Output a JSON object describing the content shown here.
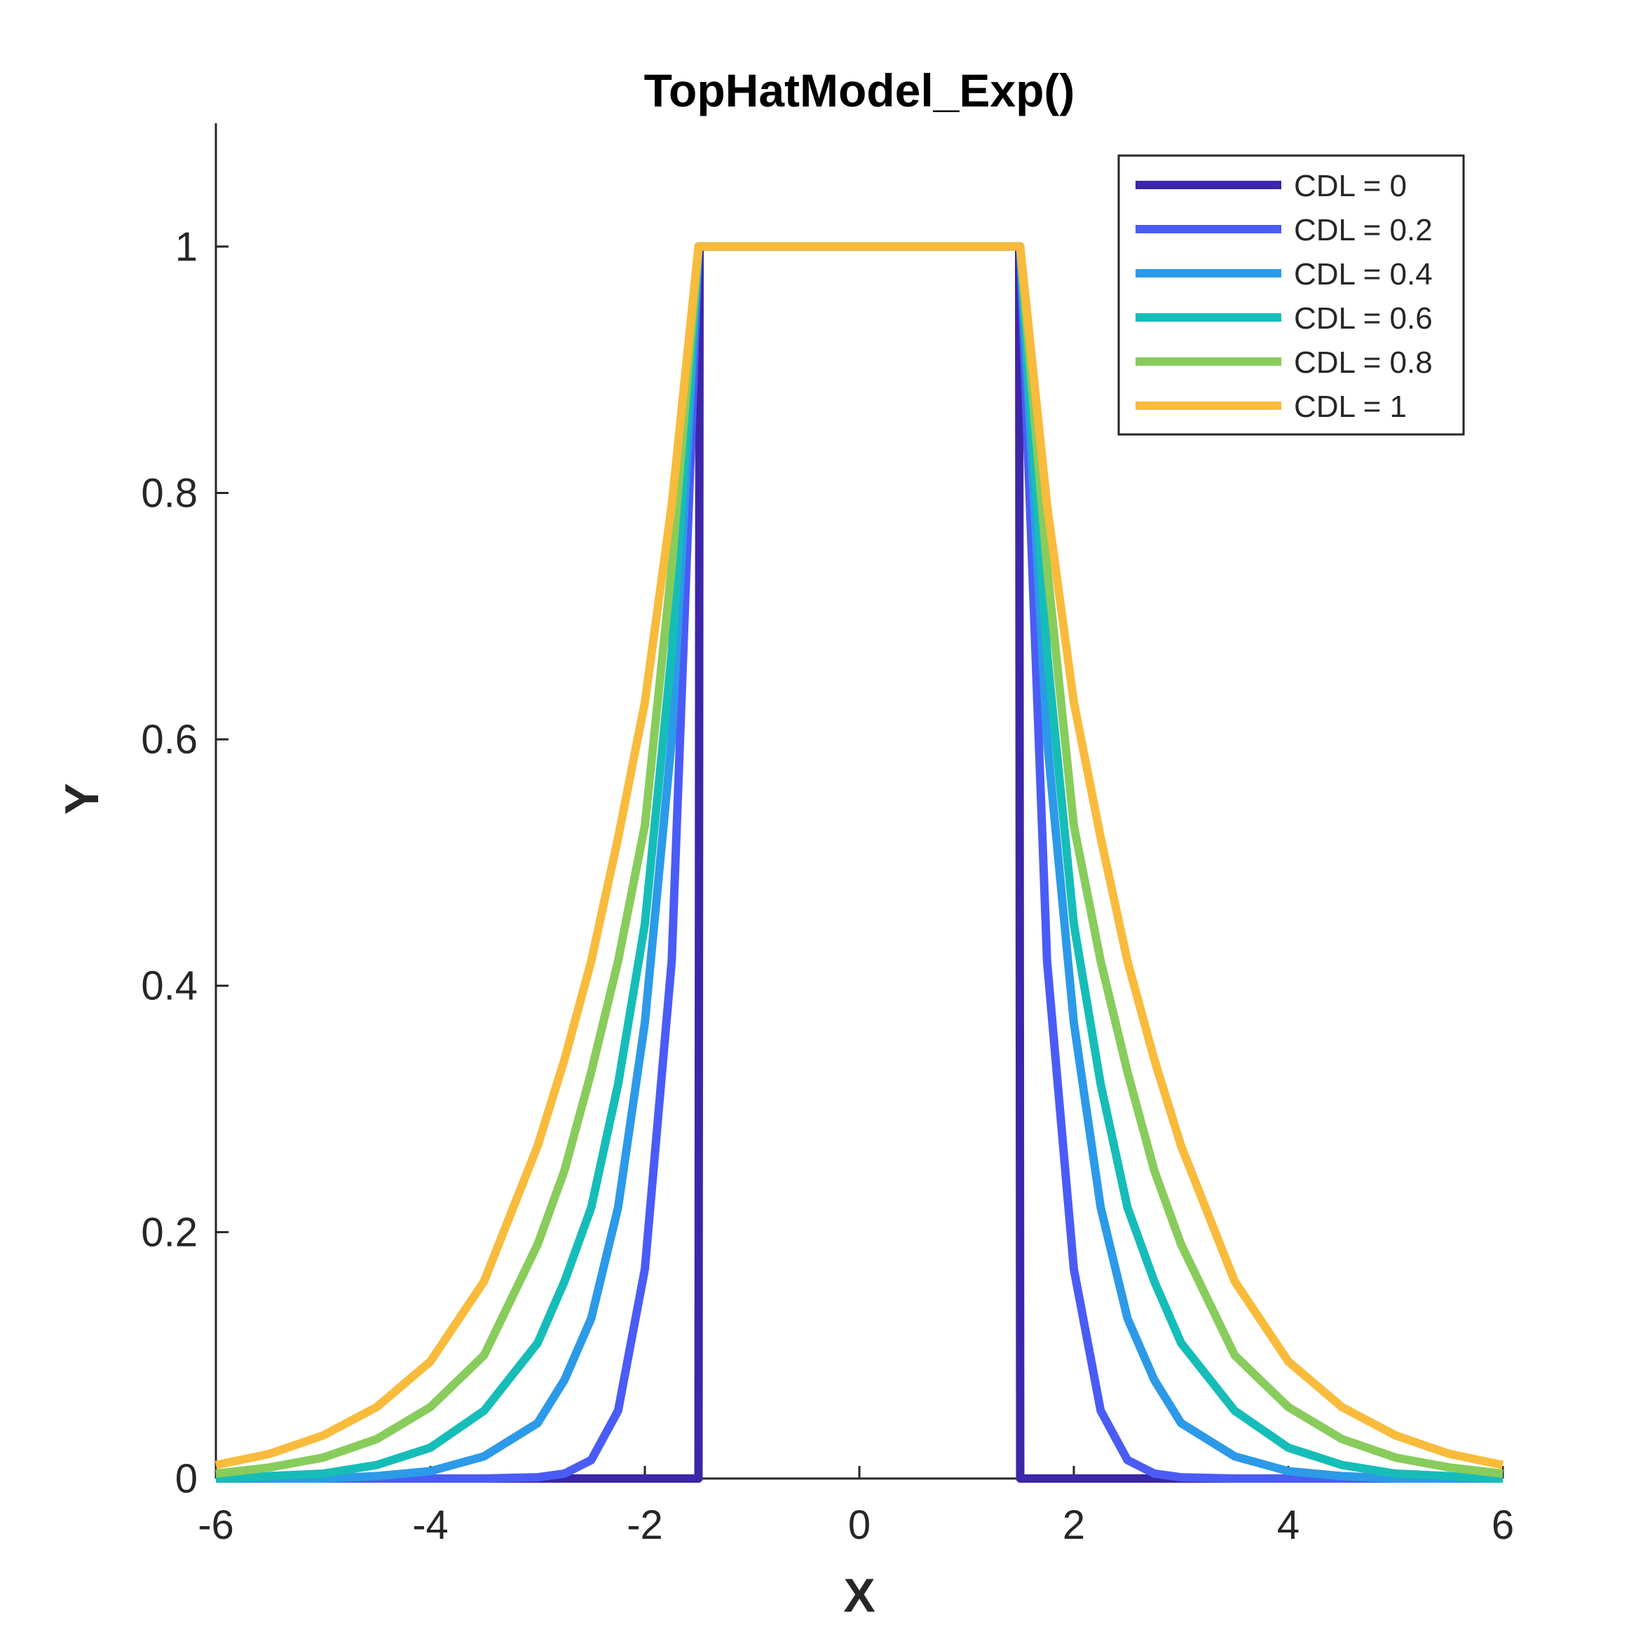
{
  "chart_data": {
    "type": "line",
    "title": "TopHatModel_Exp()",
    "xlabel": "X",
    "ylabel": "Y",
    "xlim": [
      -6,
      6
    ],
    "ylim": [
      0,
      1.1
    ],
    "xticks": [
      -6,
      -4,
      -2,
      0,
      2,
      4,
      6
    ],
    "xtick_labels": [
      "-6",
      "-4",
      "-2",
      "0",
      "2",
      "4",
      "6"
    ],
    "yticks": [
      0,
      0.2,
      0.4,
      0.6,
      0.8,
      1
    ],
    "ytick_labels": [
      "0",
      "0.2",
      "0.4",
      "0.6",
      "0.8",
      "1"
    ],
    "grid": false,
    "legend_position": "top-right",
    "x": [
      -6.0,
      -5.5,
      -5.0,
      -4.5,
      -4.0,
      -3.5,
      -3.0,
      -2.75,
      -2.5,
      -2.25,
      -2.0,
      -1.75,
      -1.5,
      -1.49,
      0,
      1.49,
      1.5,
      1.75,
      2.0,
      2.25,
      2.5,
      2.75,
      3.0,
      3.5,
      4.0,
      4.5,
      5.0,
      5.5,
      6.0
    ],
    "series": [
      {
        "name": "CDL = 0",
        "color": "#3d26a8",
        "values": [
          0,
          0,
          0,
          0,
          0,
          0,
          0,
          0,
          0,
          0,
          0,
          0,
          0,
          1,
          1,
          1,
          0,
          0,
          0,
          0,
          0,
          0,
          0,
          0,
          0,
          0,
          0,
          0,
          0
        ]
      },
      {
        "name": "CDL = 0.2",
        "color": "#4a5cf5",
        "values": [
          0,
          0,
          0,
          0,
          0,
          0,
          0.001,
          0.004,
          0.015,
          0.055,
          0.17,
          0.42,
          1,
          1,
          1,
          1,
          1,
          0.42,
          0.17,
          0.055,
          0.015,
          0.004,
          0.001,
          0,
          0,
          0,
          0,
          0,
          0
        ]
      },
      {
        "name": "CDL = 0.4",
        "color": "#2c9ae8",
        "values": [
          0,
          0,
          0,
          0.002,
          0.006,
          0.018,
          0.045,
          0.08,
          0.13,
          0.22,
          0.37,
          0.6,
          1,
          1,
          1,
          1,
          1,
          0.6,
          0.37,
          0.22,
          0.13,
          0.08,
          0.045,
          0.018,
          0.006,
          0.002,
          0,
          0,
          0
        ]
      },
      {
        "name": "CDL = 0.6",
        "color": "#16bdb8",
        "values": [
          0,
          0.002,
          0.004,
          0.011,
          0.025,
          0.055,
          0.11,
          0.16,
          0.22,
          0.32,
          0.45,
          0.67,
          1,
          1,
          1,
          1,
          1,
          0.67,
          0.45,
          0.32,
          0.22,
          0.16,
          0.11,
          0.055,
          0.025,
          0.011,
          0.004,
          0.002,
          0
        ]
      },
      {
        "name": "CDL = 0.8",
        "color": "#88cc5c",
        "values": [
          0.004,
          0.009,
          0.017,
          0.032,
          0.058,
          0.1,
          0.19,
          0.25,
          0.33,
          0.42,
          0.53,
          0.74,
          1,
          1,
          1,
          1,
          1,
          0.74,
          0.53,
          0.42,
          0.33,
          0.25,
          0.19,
          0.1,
          0.058,
          0.032,
          0.017,
          0.009,
          0.004
        ]
      },
      {
        "name": "CDL = 1",
        "color": "#f8bb3c",
        "values": [
          0.011,
          0.02,
          0.035,
          0.058,
          0.095,
          0.16,
          0.27,
          0.34,
          0.42,
          0.52,
          0.63,
          0.79,
          1,
          1,
          1,
          1,
          1,
          0.79,
          0.63,
          0.52,
          0.42,
          0.34,
          0.27,
          0.16,
          0.095,
          0.058,
          0.035,
          0.02,
          0.011
        ]
      }
    ]
  }
}
